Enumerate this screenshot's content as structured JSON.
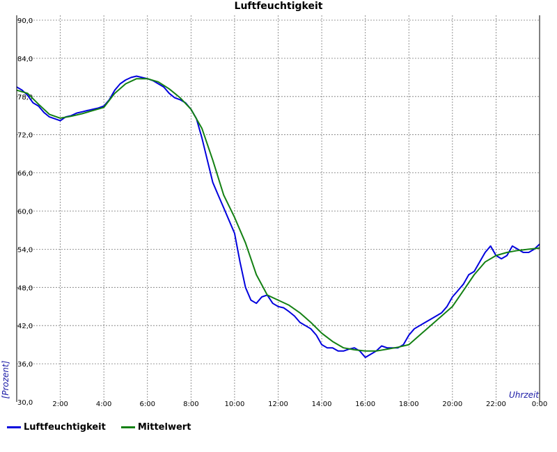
{
  "colors": {
    "humidity": "#0000dd",
    "mean": "#138013",
    "grid": "#777777"
  },
  "chart_data": {
    "type": "line",
    "title": "Luftfeuchtigkeit",
    "xlabel": "Uhrzeit",
    "ylabel": "[Prozent]",
    "xlim": [
      0,
      24
    ],
    "ylim": [
      30,
      90
    ],
    "x_ticks": [
      0,
      2,
      4,
      6,
      8,
      10,
      12,
      14,
      16,
      18,
      20,
      22,
      24
    ],
    "x_tick_labels": [
      "",
      "2:00",
      "4:00",
      "6:00",
      "8:00",
      "10:00",
      "12:00",
      "14:00",
      "16:00",
      "18:00",
      "20:00",
      "22:00",
      "0:00"
    ],
    "y_ticks": [
      30,
      36,
      42,
      48,
      54,
      60,
      66,
      72,
      78,
      84,
      90
    ],
    "y_tick_labels": [
      "30,0",
      "36,0",
      "42,0",
      "48,0",
      "54,0",
      "60,0",
      "66,0",
      "72,0",
      "78,0",
      "84,0",
      "90,0"
    ],
    "grid": true,
    "legend": "bottom-left",
    "series": [
      {
        "name": "Luftfeuchtigkeit",
        "color": "#0000dd",
        "x": [
          0,
          0.25,
          0.5,
          0.75,
          1.0,
          1.25,
          1.5,
          1.75,
          2.0,
          2.25,
          2.5,
          2.75,
          3.0,
          3.25,
          3.5,
          3.75,
          4.0,
          4.25,
          4.5,
          4.75,
          5.0,
          5.25,
          5.5,
          5.75,
          6.0,
          6.25,
          6.5,
          6.75,
          7.0,
          7.25,
          7.5,
          7.75,
          8.0,
          8.25,
          8.5,
          8.75,
          9.0,
          9.25,
          9.5,
          9.75,
          10.0,
          10.25,
          10.5,
          10.75,
          11.0,
          11.25,
          11.5,
          11.75,
          12.0,
          12.25,
          12.5,
          12.75,
          13.0,
          13.25,
          13.5,
          13.75,
          14.0,
          14.25,
          14.5,
          14.75,
          15.0,
          15.25,
          15.5,
          15.75,
          16.0,
          16.25,
          16.5,
          16.75,
          17.0,
          17.25,
          17.5,
          17.75,
          18.0,
          18.25,
          18.5,
          18.75,
          19.0,
          19.25,
          19.5,
          19.75,
          20.0,
          20.25,
          20.5,
          20.75,
          21.0,
          21.25,
          21.5,
          21.75,
          22.0,
          22.25,
          22.5,
          22.75,
          23.0,
          23.25,
          23.5,
          23.75,
          24.0
        ],
        "values": [
          79.5,
          79.0,
          78.2,
          77.0,
          76.5,
          75.5,
          74.8,
          74.5,
          74.2,
          74.8,
          75.0,
          75.4,
          75.6,
          75.8,
          76.0,
          76.2,
          76.5,
          77.5,
          79.0,
          80.0,
          80.6,
          81.0,
          81.2,
          81.0,
          80.8,
          80.5,
          80.0,
          79.5,
          78.5,
          77.8,
          77.5,
          77.0,
          76.0,
          74.5,
          71.5,
          68.0,
          64.5,
          62.5,
          60.5,
          58.5,
          56.5,
          52.0,
          48.0,
          46.0,
          45.5,
          46.5,
          46.8,
          45.5,
          45.0,
          44.8,
          44.2,
          43.5,
          42.5,
          42.0,
          41.5,
          40.5,
          39.0,
          38.5,
          38.5,
          38.0,
          38.0,
          38.3,
          38.5,
          38.0,
          37.0,
          37.5,
          38.0,
          38.8,
          38.5,
          38.5,
          38.5,
          39.0,
          40.5,
          41.5,
          42.0,
          42.5,
          43.0,
          43.5,
          44.0,
          45.0,
          46.5,
          47.5,
          48.5,
          50.0,
          50.5,
          52.0,
          53.5,
          54.5,
          53.0,
          52.5,
          53.0,
          54.5,
          54.0,
          53.5,
          53.5,
          54.0,
          54.8
        ]
      },
      {
        "name": "Mittelwert",
        "color": "#138013",
        "x": [
          0,
          0.5,
          1.0,
          1.5,
          2.0,
          2.5,
          3.0,
          3.5,
          4.0,
          4.5,
          5.0,
          5.5,
          6.0,
          6.5,
          7.0,
          7.5,
          8.0,
          8.5,
          9.0,
          9.5,
          10.0,
          10.5,
          11.0,
          11.5,
          12.0,
          12.5,
          13.0,
          13.5,
          14.0,
          14.5,
          15.0,
          15.5,
          16.0,
          16.5,
          17.0,
          17.5,
          18.0,
          18.5,
          19.0,
          19.5,
          20.0,
          20.5,
          21.0,
          21.5,
          22.0,
          22.5,
          23.0,
          23.5,
          24.0
        ],
        "values": [
          79.0,
          78.5,
          76.8,
          75.2,
          74.6,
          74.9,
          75.3,
          75.8,
          76.3,
          78.5,
          80.0,
          80.8,
          80.8,
          80.3,
          79.2,
          77.8,
          76.0,
          73.0,
          68.0,
          62.5,
          59.0,
          55.0,
          50.0,
          46.8,
          46.0,
          45.2,
          44.0,
          42.5,
          40.8,
          39.5,
          38.5,
          38.2,
          38.0,
          38.0,
          38.3,
          38.6,
          39.0,
          40.5,
          42.0,
          43.5,
          45.0,
          47.5,
          50.0,
          52.0,
          53.0,
          53.5,
          53.8,
          54.0,
          54.2
        ]
      }
    ]
  }
}
